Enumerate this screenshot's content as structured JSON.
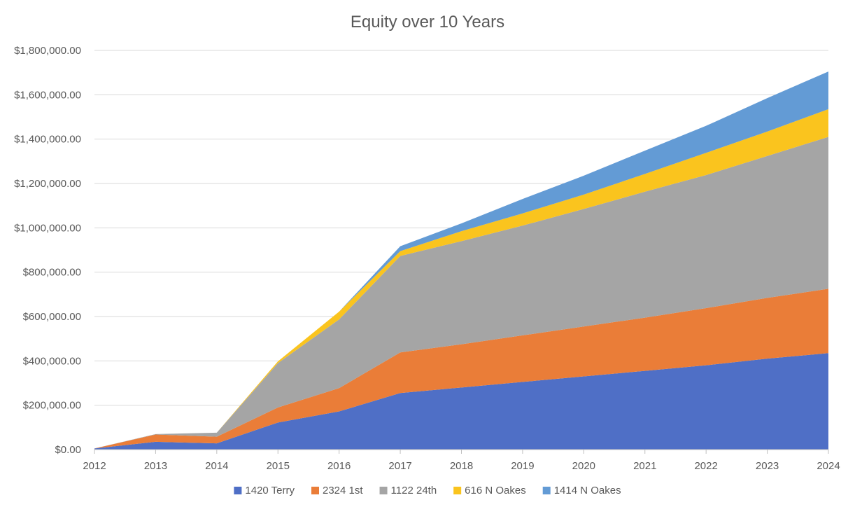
{
  "chart_data": {
    "type": "area",
    "stacked": true,
    "title": "Equity over 10 Years",
    "xlabel": "",
    "ylabel": "",
    "x": [
      "2012",
      "2013",
      "2014",
      "2015",
      "2016",
      "2017",
      "2018",
      "2019",
      "2020",
      "2021",
      "2022",
      "2023",
      "2024"
    ],
    "ylim": [
      0,
      1800000
    ],
    "yticks": [
      0,
      200000,
      400000,
      600000,
      800000,
      1000000,
      1200000,
      1400000,
      1600000,
      1800000
    ],
    "ytick_labels": [
      "$0.00",
      "$200,000.00",
      "$400,000.00",
      "$600,000.00",
      "$800,000.00",
      "$1,000,000.00",
      "$1,200,000.00",
      "$1,400,000.00",
      "$1,600,000.00",
      "$1,800,000.00"
    ],
    "grid": true,
    "legend_position": "bottom",
    "series": [
      {
        "name": "1420 Terry",
        "color": "#4f6fc6",
        "values": [
          5000,
          35000,
          28000,
          122000,
          172000,
          255000,
          280000,
          305000,
          330000,
          355000,
          380000,
          410000,
          435000
        ]
      },
      {
        "name": "2324 1st",
        "color": "#ea7d38",
        "values": [
          0,
          33000,
          30000,
          68000,
          105000,
          183000,
          195000,
          210000,
          225000,
          240000,
          258000,
          274000,
          290000
        ]
      },
      {
        "name": "1122 24th",
        "color": "#a5a5a5",
        "values": [
          0,
          2000,
          18000,
          200000,
          310000,
          435000,
          465000,
          495000,
          530000,
          568000,
          600000,
          640000,
          685000
        ]
      },
      {
        "name": "616 N Oakes",
        "color": "#fac41e",
        "values": [
          0,
          0,
          0,
          8000,
          35000,
          22000,
          45000,
          55000,
          65000,
          80000,
          100000,
          110000,
          125000
        ]
      },
      {
        "name": "1414 N Oakes",
        "color": "#639bd5",
        "values": [
          0,
          0,
          0,
          0,
          0,
          22000,
          35000,
          65000,
          85000,
          105000,
          122000,
          151000,
          170000
        ]
      }
    ]
  }
}
